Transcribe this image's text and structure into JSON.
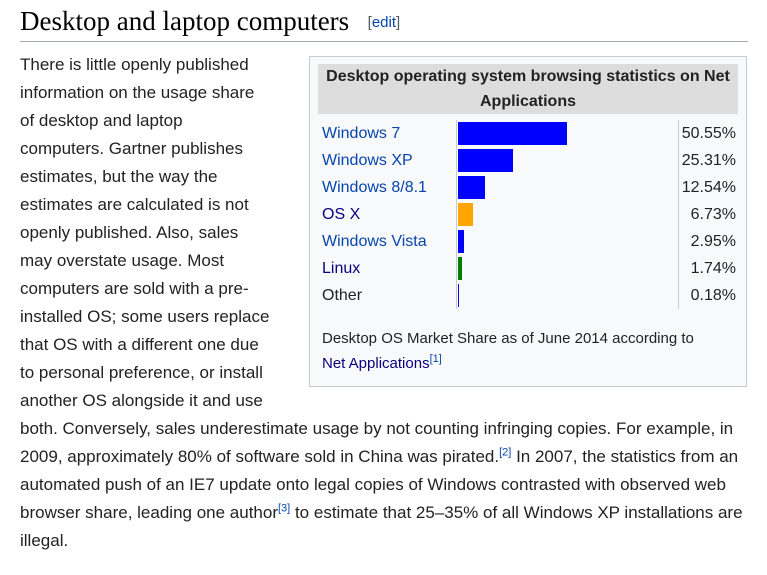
{
  "section": {
    "title": "Desktop and laptop computers",
    "edit_open": "[",
    "edit_label": "edit",
    "edit_close": "]"
  },
  "infobox": {
    "title": "Desktop operating system browsing statistics on Net Applications",
    "rows": [
      {
        "name": "Windows 7",
        "percent_text": "50.55%",
        "value": 50.55,
        "color": "#0000ff"
      },
      {
        "name": "Windows XP",
        "percent_text": "25.31%",
        "value": 25.31,
        "color": "#0000ff"
      },
      {
        "name": "Windows 8/8.1",
        "percent_text": "12.54%",
        "value": 12.54,
        "color": "#0000ff"
      },
      {
        "name": "OS X",
        "percent_text": "6.73%",
        "value": 6.73,
        "color": "#ffa500"
      },
      {
        "name": "Windows Vista",
        "percent_text": "2.95%",
        "value": 2.95,
        "color": "#0000ff"
      },
      {
        "name": "Linux",
        "percent_text": "1.74%",
        "value": 1.74,
        "color": "#008000"
      },
      {
        "name": "Other",
        "percent_text": "0.18%",
        "value": 0.18,
        "color": "#0000ff"
      }
    ],
    "caption_text": "Desktop OS Market Share as of June 2014 according to",
    "caption_link": "Net Applications",
    "caption_ref": "[1]"
  },
  "body": {
    "para_left_lines": [
      "There is little openly published",
      "information on the usage share",
      "of desktop and laptop",
      "computers. Gartner publishes",
      "estimates, but the way the",
      "estimates are calculated is not",
      "openly published. Also, sales",
      "may overstate usage. Most",
      "computers are sold with a pre-",
      "installed OS; some users replace",
      "that OS with a different one due",
      "to personal preference, or install",
      "another OS alongside it and use"
    ],
    "para_full_1": "both. Conversely, sales underestimate usage by not counting infringing copies. For example, in 2009, approximately 80% of software sold in China was pirated.",
    "ref_2": "[2]",
    "para_full_2": " In 2007, the statistics from an automated push of an IE7 update onto legal copies of Windows contrasted with observed web browser share, leading one author",
    "ref_3": "[3]",
    "para_full_3": " to estimate that 25–35% of all Windows XP installations are illegal."
  }
}
